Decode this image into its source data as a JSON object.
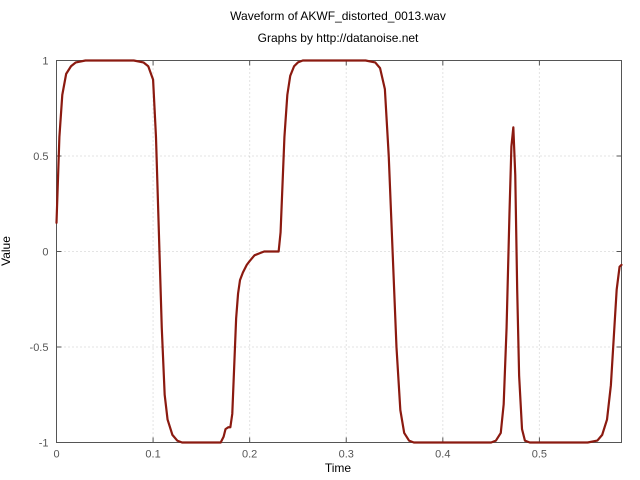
{
  "chart_data": {
    "type": "line",
    "title": "Waveform of AKWF_distorted_0013.wav",
    "subtitle": "Graphs by http://datanoise.net",
    "xlabel": "Time",
    "ylabel": "Value",
    "xlim": [
      0,
      0.585
    ],
    "ylim": [
      -1,
      1
    ],
    "xticks": [
      "0",
      "0.1",
      "0.2",
      "0.3",
      "0.4",
      "0.5"
    ],
    "yticks": [
      "1",
      "0.5",
      "0",
      "-0.5",
      "-1"
    ],
    "xtick_values": [
      0,
      0.1,
      0.2,
      0.3,
      0.4,
      0.5
    ],
    "ytick_values": [
      1,
      0.5,
      0,
      -0.5,
      -1
    ],
    "grid": true,
    "series": [
      {
        "color": "#8b1a10",
        "x": [
          0,
          0.003,
          0.006,
          0.01,
          0.015,
          0.02,
          0.03,
          0.05,
          0.08,
          0.09,
          0.095,
          0.1,
          0.103,
          0.106,
          0.109,
          0.112,
          0.115,
          0.12,
          0.125,
          0.13,
          0.14,
          0.15,
          0.16,
          0.17,
          0.173,
          0.175,
          0.178,
          0.18,
          0.182,
          0.184,
          0.186,
          0.188,
          0.19,
          0.193,
          0.197,
          0.2,
          0.205,
          0.21,
          0.215,
          0.22,
          0.225,
          0.23,
          0.232,
          0.234,
          0.236,
          0.239,
          0.242,
          0.246,
          0.25,
          0.255,
          0.26,
          0.27,
          0.3,
          0.32,
          0.33,
          0.335,
          0.34,
          0.344,
          0.348,
          0.352,
          0.356,
          0.36,
          0.365,
          0.37,
          0.38,
          0.4,
          0.43,
          0.45,
          0.455,
          0.46,
          0.463,
          0.466,
          0.469,
          0.471,
          0.473,
          0.475,
          0.477,
          0.479,
          0.482,
          0.485,
          0.49,
          0.5,
          0.53,
          0.55,
          0.56,
          0.565,
          0.57,
          0.574,
          0.577,
          0.58,
          0.583,
          0.585
        ],
        "y": [
          0.15,
          0.6,
          0.82,
          0.93,
          0.97,
          0.99,
          1.0,
          1.0,
          1.0,
          0.99,
          0.97,
          0.9,
          0.6,
          0.1,
          -0.4,
          -0.75,
          -0.88,
          -0.96,
          -0.99,
          -1.0,
          -1.0,
          -1.0,
          -1.0,
          -1.0,
          -0.97,
          -0.93,
          -0.92,
          -0.92,
          -0.85,
          -0.6,
          -0.35,
          -0.22,
          -0.15,
          -0.11,
          -0.07,
          -0.05,
          -0.02,
          -0.01,
          0.0,
          0.0,
          0.0,
          0.0,
          0.1,
          0.35,
          0.6,
          0.82,
          0.92,
          0.97,
          0.99,
          1.0,
          1.0,
          1.0,
          1.0,
          1.0,
          0.99,
          0.96,
          0.85,
          0.5,
          0.0,
          -0.5,
          -0.83,
          -0.95,
          -0.99,
          -1.0,
          -1.0,
          -1.0,
          -1.0,
          -1.0,
          -0.99,
          -0.95,
          -0.8,
          -0.4,
          0.2,
          0.55,
          0.65,
          0.4,
          -0.2,
          -0.65,
          -0.93,
          -0.99,
          -1.0,
          -1.0,
          -1.0,
          -1.0,
          -0.99,
          -0.96,
          -0.88,
          -0.7,
          -0.45,
          -0.2,
          -0.08,
          -0.07
        ]
      }
    ]
  }
}
